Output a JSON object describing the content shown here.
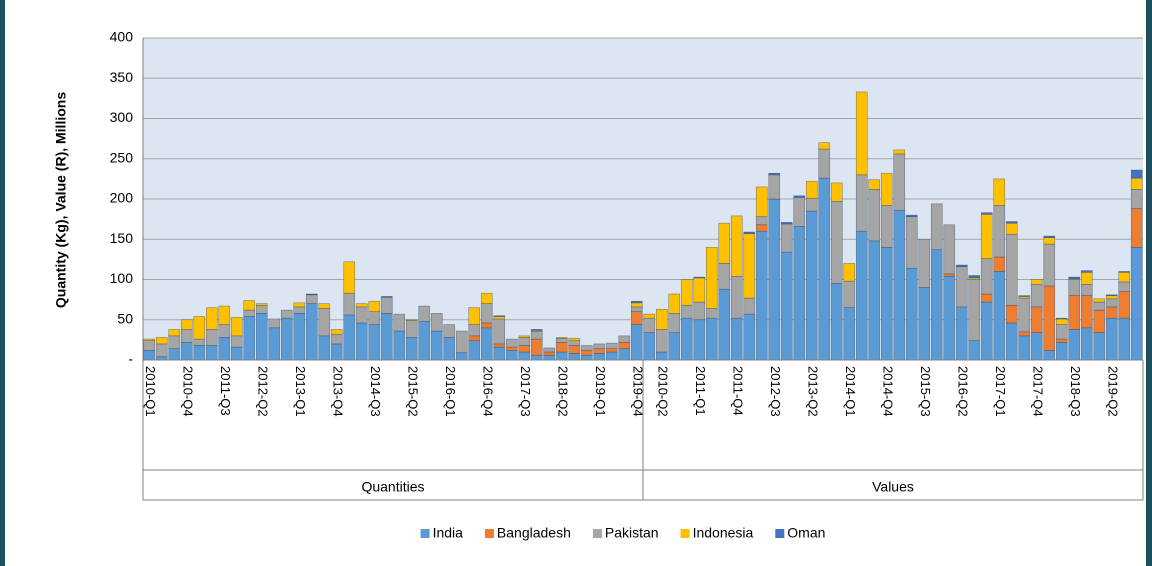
{
  "chart_data": {
    "type": "stacked_bar",
    "y_label": "Quantity (Kg), Value (R), Millions",
    "groups": [
      "Quantities",
      "Values"
    ],
    "categories": [
      "2010-Q1",
      null,
      null,
      "2010-Q4",
      null,
      null,
      "2011-Q3",
      null,
      null,
      "2012-Q2",
      null,
      null,
      "2013-Q1",
      null,
      null,
      "2013-Q4",
      null,
      null,
      "2014-Q3",
      null,
      null,
      "2015-Q2",
      null,
      null,
      "2016-Q1",
      null,
      null,
      "2016-Q4",
      null,
      null,
      "2017-Q3",
      null,
      null,
      "2018-Q2",
      null,
      null,
      "2019-Q1",
      null,
      null,
      "2019-Q4",
      null,
      "2010-Q2",
      null,
      null,
      "2011-Q1",
      null,
      null,
      "2011-Q4",
      null,
      null,
      "2012-Q3",
      null,
      null,
      "2013-Q2",
      null,
      null,
      "2014-Q1",
      null,
      null,
      "2014-Q4",
      null,
      null,
      "2015-Q3",
      null,
      null,
      "2016-Q2",
      null,
      null,
      "2017-Q1",
      null,
      null,
      "2017-Q4",
      null,
      null,
      "2018-Q3",
      null,
      null,
      "2019-Q2",
      null,
      null
    ],
    "series": [
      {
        "name": "India",
        "color": "#5b9bd5",
        "values": [
          12,
          4,
          14,
          22,
          18,
          18,
          28,
          16,
          54,
          58,
          40,
          52,
          58,
          70,
          30,
          20,
          56,
          46,
          44,
          58,
          36,
          28,
          48,
          36,
          28,
          9,
          24,
          40,
          16,
          12,
          10,
          6,
          6,
          10,
          8,
          6,
          8,
          10,
          14,
          44,
          34,
          10,
          34,
          52,
          50,
          52,
          88,
          52,
          57,
          160,
          200,
          134,
          166,
          185,
          226,
          95,
          65,
          160,
          148,
          140,
          186,
          114,
          90,
          137,
          104,
          66,
          24,
          72,
          110,
          46,
          30,
          34,
          12,
          22,
          38,
          40,
          34,
          52,
          52,
          140
        ]
      },
      {
        "name": "Bangladesh",
        "color": "#ed7d31",
        "values": [
          0,
          0,
          0,
          0,
          0,
          0,
          0,
          0,
          0,
          0,
          0,
          0,
          0,
          0,
          0,
          0,
          0,
          0,
          0,
          0,
          0,
          0,
          0,
          0,
          0,
          0,
          6,
          6,
          4,
          4,
          8,
          20,
          4,
          12,
          10,
          6,
          6,
          4,
          8,
          16,
          0,
          0,
          0,
          0,
          0,
          0,
          0,
          0,
          0,
          8,
          0,
          0,
          0,
          0,
          0,
          0,
          0,
          0,
          0,
          0,
          0,
          0,
          0,
          0,
          3,
          0,
          0,
          10,
          18,
          22,
          5,
          32,
          80,
          4,
          42,
          40,
          28,
          14,
          33,
          48
        ]
      },
      {
        "name": "Pakistan",
        "color": "#a5a5a5",
        "values": [
          12,
          16,
          16,
          16,
          8,
          20,
          16,
          14,
          8,
          10,
          11,
          10,
          8,
          11,
          34,
          12,
          27,
          20,
          16,
          20,
          21,
          21,
          19,
          22,
          16,
          27,
          14,
          24,
          31,
          10,
          10,
          10,
          5,
          5,
          6,
          6,
          6,
          7,
          8,
          6,
          18,
          28,
          24,
          16,
          22,
          12,
          32,
          52,
          20,
          10,
          30,
          35,
          36,
          16,
          36,
          102,
          33,
          70,
          64,
          52,
          70,
          64,
          60,
          57,
          61,
          50,
          76,
          44,
          64,
          88,
          42,
          28,
          52,
          18,
          20,
          14,
          10,
          10,
          12,
          24
        ]
      },
      {
        "name": "Indonesia",
        "color": "#ffc000",
        "values": [
          2,
          8,
          8,
          12,
          28,
          27,
          23,
          23,
          12,
          2,
          0,
          0,
          5,
          0,
          6,
          6,
          39,
          4,
          13,
          0,
          0,
          1,
          0,
          0,
          0,
          0,
          21,
          13,
          3,
          0,
          2,
          1,
          0,
          1,
          3,
          0,
          0,
          0,
          0,
          5,
          5,
          25,
          24,
          32,
          30,
          76,
          50,
          75,
          80,
          37,
          0,
          0,
          0,
          21,
          8,
          23,
          22,
          103,
          12,
          40,
          5,
          0,
          0,
          0,
          0,
          0,
          2,
          55,
          33,
          14,
          2,
          6,
          8,
          7,
          1,
          15,
          4,
          4,
          12,
          14
        ]
      },
      {
        "name": "Oman",
        "color": "#4472c4",
        "values": [
          0,
          0,
          0,
          0,
          0,
          0,
          0,
          0,
          0,
          0,
          0,
          0,
          0,
          1,
          0,
          0,
          0,
          0,
          0,
          1,
          0,
          0,
          0,
          0,
          0,
          0,
          0,
          0,
          1,
          0,
          0,
          1,
          0,
          0,
          0,
          0,
          0,
          0,
          0,
          2,
          0,
          0,
          0,
          0,
          1,
          0,
          0,
          0,
          2,
          0,
          2,
          2,
          2,
          0,
          0,
          0,
          0,
          0,
          0,
          0,
          0,
          2,
          0,
          0,
          0,
          2,
          3,
          2,
          0,
          2,
          1,
          0,
          2,
          1,
          2,
          2,
          0,
          1,
          1,
          10
        ]
      }
    ],
    "ylim": [
      0,
      400
    ],
    "yticks": [
      {
        "value": 0,
        "label": "-"
      },
      50,
      100,
      150,
      200,
      250,
      300,
      350,
      400
    ],
    "grid": true,
    "legend": "bottom"
  }
}
